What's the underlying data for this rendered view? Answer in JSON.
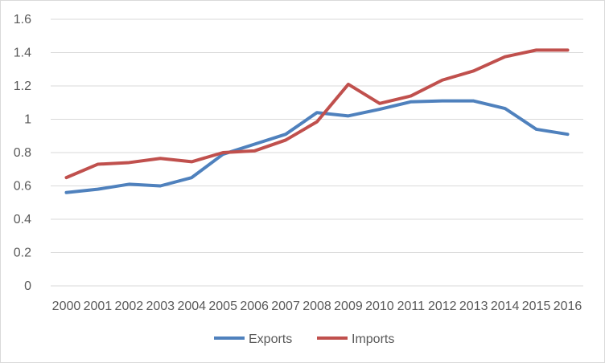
{
  "chart_data": {
    "type": "line",
    "title": "",
    "xlabel": "",
    "ylabel": "",
    "x": [
      "2000",
      "2001",
      "2002",
      "2003",
      "2004",
      "2005",
      "2006",
      "2007",
      "2008",
      "2009",
      "2010",
      "2011",
      "2012",
      "2013",
      "2014",
      "2015",
      "2016"
    ],
    "ylim": [
      0,
      1.6
    ],
    "yticks": [
      "0",
      "0.2",
      "0.4",
      "0.6",
      "0.8",
      "1",
      "1.2",
      "1.4",
      "1.6"
    ],
    "grid": true,
    "legend_position": "bottom",
    "series": [
      {
        "name": "Exports",
        "color": "#4f81bd",
        "values": [
          0.56,
          0.58,
          0.61,
          0.6,
          0.65,
          0.79,
          0.85,
          0.91,
          1.04,
          1.02,
          1.06,
          1.105,
          1.11,
          1.11,
          1.065,
          0.94,
          0.91
        ]
      },
      {
        "name": "Imports",
        "color": "#c0504d",
        "values": [
          0.65,
          0.73,
          0.74,
          0.765,
          0.745,
          0.8,
          0.81,
          0.875,
          0.985,
          1.21,
          1.095,
          1.14,
          1.235,
          1.29,
          1.375,
          1.415,
          1.415
        ]
      }
    ]
  }
}
